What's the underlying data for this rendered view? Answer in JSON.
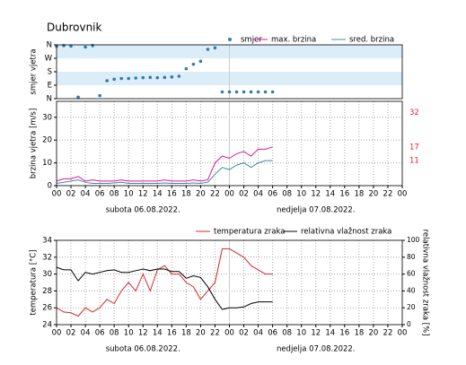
{
  "title": "Dubrovnik",
  "chart_data": [
    {
      "type": "scatter",
      "ylabel": "smjer vjetra",
      "legend": "top",
      "x": [
        0,
        1,
        2,
        3,
        4,
        5,
        6,
        7,
        8,
        9,
        10,
        11,
        12,
        13,
        14,
        15,
        16,
        17,
        18,
        19,
        20,
        21,
        22,
        23,
        24,
        25,
        26,
        27,
        28,
        29,
        30
      ],
      "xlim": [
        0,
        48
      ],
      "ylim": [
        0,
        360
      ],
      "yticks": [
        {
          "value": 0,
          "label": "N"
        },
        {
          "value": 90,
          "label": "E"
        },
        {
          "value": 180,
          "label": "S"
        },
        {
          "value": 270,
          "label": "W"
        },
        {
          "value": 360,
          "label": "N"
        }
      ],
      "series": [
        {
          "name": "smjer",
          "color": "#2e7db3",
          "values": [
            350,
            355,
            352,
            10,
            345,
            355,
            20,
            120,
            130,
            135,
            135,
            138,
            140,
            142,
            140,
            142,
            145,
            150,
            200,
            230,
            250,
            330,
            340,
            45,
            45,
            45,
            45,
            45,
            45,
            45,
            45
          ]
        }
      ]
    },
    {
      "type": "line",
      "ylabel": "brzina vjetra [m/s]",
      "legend": "top",
      "grid": true,
      "x": [
        0,
        1,
        2,
        3,
        4,
        5,
        6,
        7,
        8,
        9,
        10,
        11,
        12,
        13,
        14,
        15,
        16,
        17,
        18,
        19,
        20,
        21,
        22,
        23,
        24,
        25,
        26,
        27,
        28,
        29,
        30
      ],
      "xlim": [
        0,
        48
      ],
      "ylim": [
        0,
        37
      ],
      "yticks": [
        0,
        10,
        20,
        30
      ],
      "xticks": [
        {
          "value": 0,
          "label": "00"
        },
        {
          "value": 2,
          "label": "02"
        },
        {
          "value": 4,
          "label": "04"
        },
        {
          "value": 6,
          "label": "06"
        },
        {
          "value": 8,
          "label": "08"
        },
        10,
        12,
        14,
        16,
        18,
        20,
        22,
        {
          "value": 24,
          "label": "00"
        },
        {
          "value": 26,
          "label": "02"
        },
        {
          "value": 28,
          "label": "04"
        },
        {
          "value": 30,
          "label": "06"
        },
        {
          "value": 32,
          "label": "08"
        },
        {
          "value": 34,
          "label": "10"
        },
        {
          "value": 36,
          "label": "12"
        },
        {
          "value": 38,
          "label": "14"
        },
        {
          "value": 40,
          "label": "16"
        },
        {
          "value": 42,
          "label": "18"
        },
        {
          "value": 44,
          "label": "20"
        },
        {
          "value": 46,
          "label": "22"
        },
        {
          "value": 48,
          "label": "00"
        }
      ],
      "day_labels": [
        "subota  06.08.2022.",
        "nedjelja  07.08.2022."
      ],
      "right_marks": [
        32,
        17,
        11
      ],
      "right_marks_color": "#e8212e",
      "series": [
        {
          "name": "max. brzina",
          "color": "#e0189a",
          "values": [
            2,
            3,
            3,
            4,
            2,
            2.5,
            2,
            2,
            2,
            2.5,
            2,
            2,
            2,
            2,
            2,
            2.5,
            2,
            2,
            2,
            2.5,
            2,
            2.5,
            10,
            13,
            12,
            14,
            15,
            13,
            16,
            16,
            17
          ]
        },
        {
          "name": "sred. brzina",
          "color": "#3a8ca6",
          "values": [
            1,
            1.5,
            2,
            2.5,
            1.5,
            1,
            1,
            1,
            1.2,
            1.5,
            1,
            1,
            1,
            1,
            1,
            1.2,
            1,
            1,
            1,
            1.2,
            1,
            1.5,
            5,
            8,
            7,
            9,
            10,
            8,
            10,
            11,
            11
          ]
        }
      ]
    },
    {
      "type": "line",
      "ylabel": "temperatura [°C]",
      "y2label": "relativna vlažnost zraka [%]",
      "legend": "top",
      "grid": true,
      "x": [
        0,
        1,
        2,
        3,
        4,
        5,
        6,
        7,
        8,
        9,
        10,
        11,
        12,
        13,
        14,
        15,
        16,
        17,
        18,
        19,
        20,
        21,
        22,
        23,
        24,
        25,
        26,
        27,
        28,
        29,
        30
      ],
      "xlim": [
        0,
        48
      ],
      "ylim": [
        24,
        34
      ],
      "yticks": [
        24,
        26,
        28,
        30,
        32,
        34
      ],
      "y2lim": [
        0,
        100
      ],
      "y2ticks": [
        0,
        20,
        40,
        60,
        80,
        100
      ],
      "xticks": [
        {
          "value": 0,
          "label": "00"
        },
        {
          "value": 2,
          "label": "02"
        },
        {
          "value": 4,
          "label": "04"
        },
        {
          "value": 6,
          "label": "06"
        },
        {
          "value": 8,
          "label": "08"
        },
        10,
        12,
        14,
        16,
        18,
        20,
        22,
        {
          "value": 24,
          "label": "00"
        },
        {
          "value": 26,
          "label": "02"
        },
        {
          "value": 28,
          "label": "04"
        },
        {
          "value": 30,
          "label": "06"
        },
        {
          "value": 32,
          "label": "08"
        },
        {
          "value": 34,
          "label": "10"
        },
        {
          "value": 36,
          "label": "12"
        },
        {
          "value": 38,
          "label": "14"
        },
        {
          "value": 40,
          "label": "16"
        },
        {
          "value": 42,
          "label": "18"
        },
        {
          "value": 44,
          "label": "20"
        },
        {
          "value": 46,
          "label": "22"
        },
        {
          "value": 48,
          "label": "00"
        }
      ],
      "day_labels": [
        "subota  06.08.2022.",
        "nedjelja  07.08.2022."
      ],
      "series": [
        {
          "name": "temperatura zraka",
          "color": "#d62728",
          "values": [
            26,
            25.5,
            25.4,
            25,
            26,
            25.5,
            26,
            27,
            26.5,
            28,
            29,
            28,
            30,
            28,
            30.5,
            31,
            30,
            30,
            29,
            28.5,
            27,
            28,
            29,
            33,
            33,
            32.5,
            32,
            31,
            30.5,
            30,
            30
          ]
        },
        {
          "name": "relativna vlažnost zraka",
          "color": "#000000",
          "axis": "y2",
          "values": [
            68,
            65,
            65,
            52,
            62,
            60,
            62,
            64,
            65,
            62,
            62,
            64,
            66,
            64,
            66,
            66,
            63,
            63,
            55,
            58,
            56,
            45,
            30,
            18,
            20,
            20,
            21,
            25,
            27,
            27,
            27
          ]
        }
      ]
    }
  ]
}
